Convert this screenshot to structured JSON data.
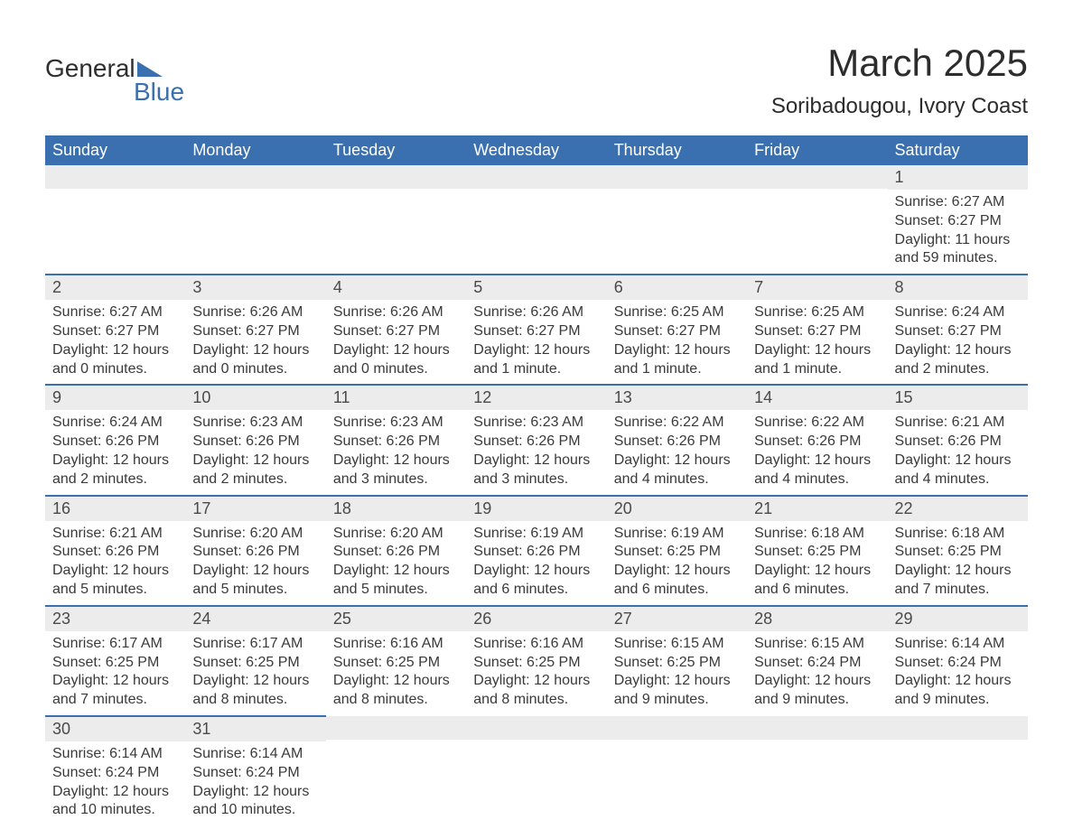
{
  "logo": {
    "text1": "General",
    "text2": "Blue",
    "triangle_color": "#3b70b0"
  },
  "title": "March 2025",
  "location": "Soribadougou, Ivory Coast",
  "colors": {
    "header_bg": "#3b70b0",
    "header_text": "#ffffff",
    "daynum_bg": "#ececec",
    "row_border": "#3b70b0",
    "body_text": "#3a3a3a",
    "page_bg": "#ffffff"
  },
  "layout": {
    "columns": 7,
    "rows": 6,
    "cell_font_size": 16,
    "header_font_size": 18,
    "title_font_size": 42
  },
  "weekdays": [
    "Sunday",
    "Monday",
    "Tuesday",
    "Wednesday",
    "Thursday",
    "Friday",
    "Saturday"
  ],
  "weeks": [
    [
      null,
      null,
      null,
      null,
      null,
      null,
      {
        "n": "1",
        "sr": "Sunrise: 6:27 AM",
        "ss": "Sunset: 6:27 PM",
        "dl": "Daylight: 11 hours and 59 minutes."
      }
    ],
    [
      {
        "n": "2",
        "sr": "Sunrise: 6:27 AM",
        "ss": "Sunset: 6:27 PM",
        "dl": "Daylight: 12 hours and 0 minutes."
      },
      {
        "n": "3",
        "sr": "Sunrise: 6:26 AM",
        "ss": "Sunset: 6:27 PM",
        "dl": "Daylight: 12 hours and 0 minutes."
      },
      {
        "n": "4",
        "sr": "Sunrise: 6:26 AM",
        "ss": "Sunset: 6:27 PM",
        "dl": "Daylight: 12 hours and 0 minutes."
      },
      {
        "n": "5",
        "sr": "Sunrise: 6:26 AM",
        "ss": "Sunset: 6:27 PM",
        "dl": "Daylight: 12 hours and 1 minute."
      },
      {
        "n": "6",
        "sr": "Sunrise: 6:25 AM",
        "ss": "Sunset: 6:27 PM",
        "dl": "Daylight: 12 hours and 1 minute."
      },
      {
        "n": "7",
        "sr": "Sunrise: 6:25 AM",
        "ss": "Sunset: 6:27 PM",
        "dl": "Daylight: 12 hours and 1 minute."
      },
      {
        "n": "8",
        "sr": "Sunrise: 6:24 AM",
        "ss": "Sunset: 6:27 PM",
        "dl": "Daylight: 12 hours and 2 minutes."
      }
    ],
    [
      {
        "n": "9",
        "sr": "Sunrise: 6:24 AM",
        "ss": "Sunset: 6:26 PM",
        "dl": "Daylight: 12 hours and 2 minutes."
      },
      {
        "n": "10",
        "sr": "Sunrise: 6:23 AM",
        "ss": "Sunset: 6:26 PM",
        "dl": "Daylight: 12 hours and 2 minutes."
      },
      {
        "n": "11",
        "sr": "Sunrise: 6:23 AM",
        "ss": "Sunset: 6:26 PM",
        "dl": "Daylight: 12 hours and 3 minutes."
      },
      {
        "n": "12",
        "sr": "Sunrise: 6:23 AM",
        "ss": "Sunset: 6:26 PM",
        "dl": "Daylight: 12 hours and 3 minutes."
      },
      {
        "n": "13",
        "sr": "Sunrise: 6:22 AM",
        "ss": "Sunset: 6:26 PM",
        "dl": "Daylight: 12 hours and 4 minutes."
      },
      {
        "n": "14",
        "sr": "Sunrise: 6:22 AM",
        "ss": "Sunset: 6:26 PM",
        "dl": "Daylight: 12 hours and 4 minutes."
      },
      {
        "n": "15",
        "sr": "Sunrise: 6:21 AM",
        "ss": "Sunset: 6:26 PM",
        "dl": "Daylight: 12 hours and 4 minutes."
      }
    ],
    [
      {
        "n": "16",
        "sr": "Sunrise: 6:21 AM",
        "ss": "Sunset: 6:26 PM",
        "dl": "Daylight: 12 hours and 5 minutes."
      },
      {
        "n": "17",
        "sr": "Sunrise: 6:20 AM",
        "ss": "Sunset: 6:26 PM",
        "dl": "Daylight: 12 hours and 5 minutes."
      },
      {
        "n": "18",
        "sr": "Sunrise: 6:20 AM",
        "ss": "Sunset: 6:26 PM",
        "dl": "Daylight: 12 hours and 5 minutes."
      },
      {
        "n": "19",
        "sr": "Sunrise: 6:19 AM",
        "ss": "Sunset: 6:26 PM",
        "dl": "Daylight: 12 hours and 6 minutes."
      },
      {
        "n": "20",
        "sr": "Sunrise: 6:19 AM",
        "ss": "Sunset: 6:25 PM",
        "dl": "Daylight: 12 hours and 6 minutes."
      },
      {
        "n": "21",
        "sr": "Sunrise: 6:18 AM",
        "ss": "Sunset: 6:25 PM",
        "dl": "Daylight: 12 hours and 6 minutes."
      },
      {
        "n": "22",
        "sr": "Sunrise: 6:18 AM",
        "ss": "Sunset: 6:25 PM",
        "dl": "Daylight: 12 hours and 7 minutes."
      }
    ],
    [
      {
        "n": "23",
        "sr": "Sunrise: 6:17 AM",
        "ss": "Sunset: 6:25 PM",
        "dl": "Daylight: 12 hours and 7 minutes."
      },
      {
        "n": "24",
        "sr": "Sunrise: 6:17 AM",
        "ss": "Sunset: 6:25 PM",
        "dl": "Daylight: 12 hours and 8 minutes."
      },
      {
        "n": "25",
        "sr": "Sunrise: 6:16 AM",
        "ss": "Sunset: 6:25 PM",
        "dl": "Daylight: 12 hours and 8 minutes."
      },
      {
        "n": "26",
        "sr": "Sunrise: 6:16 AM",
        "ss": "Sunset: 6:25 PM",
        "dl": "Daylight: 12 hours and 8 minutes."
      },
      {
        "n": "27",
        "sr": "Sunrise: 6:15 AM",
        "ss": "Sunset: 6:25 PM",
        "dl": "Daylight: 12 hours and 9 minutes."
      },
      {
        "n": "28",
        "sr": "Sunrise: 6:15 AM",
        "ss": "Sunset: 6:24 PM",
        "dl": "Daylight: 12 hours and 9 minutes."
      },
      {
        "n": "29",
        "sr": "Sunrise: 6:14 AM",
        "ss": "Sunset: 6:24 PM",
        "dl": "Daylight: 12 hours and 9 minutes."
      }
    ],
    [
      {
        "n": "30",
        "sr": "Sunrise: 6:14 AM",
        "ss": "Sunset: 6:24 PM",
        "dl": "Daylight: 12 hours and 10 minutes."
      },
      {
        "n": "31",
        "sr": "Sunrise: 6:14 AM",
        "ss": "Sunset: 6:24 PM",
        "dl": "Daylight: 12 hours and 10 minutes."
      },
      null,
      null,
      null,
      null,
      null
    ]
  ]
}
